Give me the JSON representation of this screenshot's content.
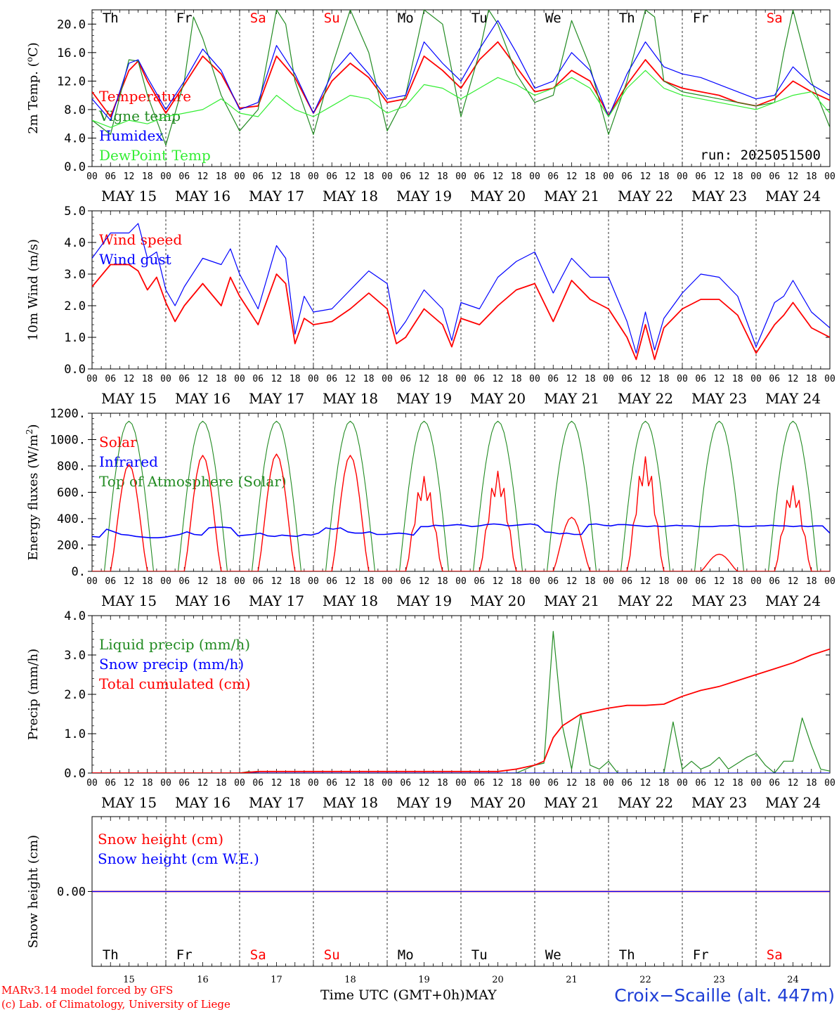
{
  "run_label": "run: 2025051500",
  "footer": {
    "credit_line1": "MARv3.14 model forced by GFS",
    "credit_line2": "(c) Lab. of Climatology, University of Liege",
    "xlabel": "Time UTC (GMT+0h)",
    "month": "MAY",
    "station": "Croix−Scaille (alt. 447m)"
  },
  "days": [
    {
      "abbr": "Th",
      "date": "MAY 15",
      "num": "15",
      "weekend": false
    },
    {
      "abbr": "Fr",
      "date": "MAY 16",
      "num": "16",
      "weekend": false
    },
    {
      "abbr": "Sa",
      "date": "MAY 17",
      "num": "17",
      "weekend": true
    },
    {
      "abbr": "Su",
      "date": "MAY 18",
      "num": "18",
      "weekend": true
    },
    {
      "abbr": "Mo",
      "date": "MAY 19",
      "num": "19",
      "weekend": false
    },
    {
      "abbr": "Tu",
      "date": "MAY 20",
      "num": "20",
      "weekend": false
    },
    {
      "abbr": "We",
      "date": "MAY 21",
      "num": "21",
      "weekend": false
    },
    {
      "abbr": "Th",
      "date": "MAY 22",
      "num": "22",
      "weekend": false
    },
    {
      "abbr": "Fr",
      "date": "MAY 23",
      "num": "23",
      "weekend": false
    },
    {
      "abbr": "Sa",
      "date": "MAY 24",
      "num": "24",
      "weekend": true
    }
  ],
  "hour_ticks": [
    "00",
    "06",
    "12",
    "18"
  ],
  "last_tick": "00",
  "colors": {
    "red": "#ff0000",
    "darkgreen": "#228b22",
    "blue": "#0000ff",
    "lightgreen": "#33ee33",
    "weekend": "#ff0000",
    "station": "#1f3fd6"
  },
  "chart_data": [
    {
      "id": "temp",
      "type": "line",
      "ylabel": "2m Temp. (oC)",
      "ylim": [
        0,
        22
      ],
      "yticks": [
        "0.0",
        "4.0",
        "8.0",
        "12.0",
        "16.0",
        "20.0"
      ],
      "ytick_values": [
        0,
        4,
        8,
        12,
        16,
        20
      ],
      "legend": [
        "Temperature",
        "Vigne temp",
        "Humidex",
        "DewPoint Temp"
      ],
      "series": [
        {
          "name": "Temperature",
          "color": "red",
          "x": [
            0,
            6,
            12,
            15,
            18,
            24,
            30,
            36,
            42,
            48,
            54,
            60,
            66,
            72,
            78,
            84,
            90,
            96,
            102,
            108,
            114,
            120,
            126,
            132,
            138,
            144,
            150,
            156,
            162,
            168,
            174,
            180,
            186,
            192,
            198,
            204,
            210,
            216,
            222,
            228,
            234,
            240
          ],
          "y": [
            10.5,
            7.0,
            13.5,
            14.8,
            12.0,
            7.5,
            11.5,
            15.5,
            13.0,
            8.2,
            8.5,
            15.5,
            12.5,
            7.5,
            12.0,
            14.5,
            12.5,
            9.0,
            9.5,
            15.5,
            13.5,
            11.0,
            15.0,
            17.5,
            14.0,
            10.5,
            11.0,
            13.5,
            12.0,
            7.2,
            11.5,
            15.0,
            12.0,
            11.0,
            10.5,
            10.0,
            9.0,
            8.5,
            9.5,
            12.0,
            10.5,
            9.3
          ]
        },
        {
          "name": "Vigne temp",
          "color": "darkgreen",
          "x": [
            0,
            6,
            12,
            15,
            18,
            24,
            30,
            33,
            36,
            42,
            48,
            54,
            60,
            63,
            66,
            72,
            78,
            84,
            90,
            96,
            102,
            108,
            114,
            120,
            126,
            129,
            132,
            138,
            144,
            150,
            156,
            162,
            168,
            174,
            180,
            183,
            186,
            192,
            198,
            204,
            210,
            216,
            222,
            225,
            228,
            234,
            240
          ],
          "y": [
            6.5,
            4.5,
            15.0,
            14.8,
            10.0,
            3.0,
            12.0,
            21.0,
            18.0,
            10.0,
            5.0,
            8.0,
            22.0,
            20.0,
            12.0,
            4.5,
            14.0,
            22.0,
            16.0,
            5.0,
            10.0,
            22.0,
            20.0,
            7.0,
            16.0,
            22.0,
            20.0,
            13.0,
            9.0,
            10.0,
            20.5,
            14.0,
            4.5,
            12.0,
            22.0,
            21.0,
            12.0,
            10.5,
            10.0,
            9.5,
            9.0,
            8.5,
            9.0,
            16.0,
            22.0,
            12.0,
            5.5
          ]
        },
        {
          "name": "Humidex",
          "color": "blue",
          "x": [
            0,
            6,
            12,
            15,
            18,
            24,
            30,
            36,
            42,
            48,
            54,
            60,
            66,
            72,
            78,
            84,
            90,
            96,
            102,
            108,
            114,
            120,
            126,
            132,
            138,
            144,
            150,
            156,
            162,
            168,
            174,
            180,
            186,
            192,
            198,
            204,
            210,
            216,
            222,
            228,
            234,
            240
          ],
          "y": [
            9.5,
            6.5,
            14.5,
            15.0,
            12.5,
            8.0,
            12.0,
            16.5,
            13.5,
            8.0,
            9.0,
            17.0,
            13.0,
            7.5,
            13.0,
            16.0,
            13.0,
            9.5,
            10.0,
            17.5,
            14.5,
            12.0,
            16.5,
            20.5,
            16.0,
            11.0,
            12.0,
            16.0,
            13.5,
            7.0,
            13.0,
            17.5,
            14.0,
            13.0,
            12.5,
            11.5,
            10.5,
            9.5,
            10.0,
            14.0,
            11.5,
            10.0
          ]
        },
        {
          "name": "DewPoint Temp",
          "color": "lightgreen",
          "x": [
            0,
            6,
            12,
            18,
            24,
            30,
            36,
            42,
            48,
            54,
            60,
            66,
            72,
            78,
            84,
            90,
            96,
            102,
            108,
            114,
            120,
            126,
            132,
            138,
            144,
            150,
            156,
            162,
            168,
            174,
            180,
            186,
            192,
            198,
            204,
            210,
            216,
            222,
            228,
            234,
            240
          ],
          "y": [
            6.5,
            5.5,
            6.5,
            6.0,
            7.0,
            7.5,
            8.0,
            9.5,
            7.5,
            7.0,
            10.0,
            8.0,
            7.0,
            8.5,
            10.0,
            9.5,
            7.5,
            8.5,
            11.5,
            11.0,
            9.5,
            11.0,
            12.5,
            11.5,
            10.0,
            11.0,
            12.5,
            11.0,
            7.0,
            11.0,
            13.5,
            11.0,
            10.0,
            9.5,
            9.0,
            8.5,
            8.0,
            9.0,
            10.0,
            10.5,
            7.5
          ]
        }
      ]
    },
    {
      "id": "wind",
      "type": "line",
      "ylabel": "10m Wind (m/s)",
      "ylim": [
        0,
        5
      ],
      "yticks": [
        "0.0",
        "1.0",
        "2.0",
        "3.0",
        "4.0",
        "5.0"
      ],
      "ytick_values": [
        0,
        1,
        2,
        3,
        4,
        5
      ],
      "legend": [
        "Wind speed",
        "Wind gust"
      ],
      "series": [
        {
          "name": "Wind speed",
          "color": "red",
          "x": [
            0,
            6,
            12,
            15,
            18,
            21,
            24,
            27,
            30,
            36,
            42,
            45,
            48,
            54,
            60,
            63,
            66,
            69,
            72,
            78,
            84,
            90,
            96,
            99,
            102,
            108,
            114,
            117,
            120,
            126,
            132,
            138,
            144,
            150,
            156,
            162,
            168,
            174,
            177,
            180,
            183,
            186,
            192,
            198,
            204,
            210,
            216,
            222,
            225,
            228,
            234,
            240
          ],
          "y": [
            2.6,
            3.3,
            3.3,
            3.1,
            2.5,
            2.9,
            2.1,
            1.5,
            2.0,
            2.7,
            2.0,
            2.9,
            2.3,
            1.4,
            3.0,
            2.7,
            0.8,
            1.6,
            1.4,
            1.5,
            1.9,
            2.4,
            1.9,
            0.8,
            1.0,
            1.9,
            1.4,
            0.7,
            1.6,
            1.4,
            2.0,
            2.5,
            2.7,
            1.5,
            2.8,
            2.2,
            1.9,
            1.0,
            0.3,
            1.4,
            0.3,
            1.3,
            1.9,
            2.2,
            2.2,
            1.7,
            0.5,
            1.4,
            1.7,
            2.1,
            1.3,
            1.0
          ]
        },
        {
          "name": "Wind gust",
          "color": "blue",
          "x": [
            0,
            6,
            12,
            15,
            18,
            21,
            24,
            27,
            30,
            36,
            42,
            45,
            48,
            54,
            60,
            63,
            66,
            69,
            72,
            78,
            84,
            90,
            96,
            99,
            102,
            108,
            114,
            117,
            120,
            126,
            132,
            138,
            144,
            150,
            156,
            162,
            168,
            174,
            177,
            180,
            183,
            186,
            192,
            198,
            204,
            210,
            216,
            222,
            225,
            228,
            234,
            240
          ],
          "y": [
            3.5,
            4.3,
            4.3,
            4.6,
            3.5,
            3.7,
            2.5,
            2.0,
            2.6,
            3.5,
            3.3,
            3.8,
            3.0,
            1.9,
            3.9,
            3.5,
            1.1,
            2.3,
            1.8,
            1.9,
            2.5,
            3.1,
            2.7,
            1.1,
            1.5,
            2.5,
            1.9,
            0.9,
            2.1,
            1.9,
            2.9,
            3.4,
            3.7,
            2.4,
            3.5,
            2.9,
            2.9,
            1.5,
            0.5,
            1.8,
            0.6,
            1.6,
            2.4,
            3.0,
            2.9,
            2.3,
            0.7,
            2.1,
            2.3,
            2.8,
            1.8,
            1.3
          ]
        }
      ]
    },
    {
      "id": "energy",
      "type": "line",
      "ylabel": "Energy fluxes (W/m2)",
      "ylim": [
        0,
        1200
      ],
      "yticks": [
        "0.",
        "200.",
        "400.",
        "600.",
        "800.",
        "1000.",
        "1200."
      ],
      "ytick_values": [
        0,
        200,
        400,
        600,
        800,
        1000,
        1200
      ],
      "legend": [
        "Solar",
        "Infrared",
        "Top of Atmosphere (Solar)"
      ],
      "toa_peak": 1140,
      "solar_daily_peak": [
        810,
        880,
        890,
        880,
        720,
        760,
        410,
        870,
        130,
        650
      ],
      "infrared": [
        265,
        260,
        320,
        300,
        280,
        275,
        265,
        260,
        255,
        255,
        260,
        270,
        280,
        300,
        280,
        275,
        330,
        335,
        335,
        330,
        270,
        275,
        280,
        290,
        270,
        265,
        275,
        270,
        265,
        280,
        275,
        290,
        330,
        320,
        330,
        300,
        290,
        290,
        300,
        280,
        280,
        285,
        290,
        285,
        275,
        340,
        340,
        350,
        345,
        350,
        355,
        350,
        340,
        345,
        355,
        360,
        355,
        345,
        350,
        355,
        360,
        350,
        300,
        295,
        285,
        290,
        280,
        280,
        355,
        360,
        350,
        345,
        355,
        355,
        350,
        345,
        340,
        345,
        340,
        345,
        350,
        345,
        345,
        340,
        340,
        340,
        345,
        345,
        350,
        340,
        340,
        345,
        345,
        350,
        345,
        345,
        340,
        345,
        340,
        345,
        345,
        290
      ]
    },
    {
      "id": "precip",
      "type": "line",
      "ylabel": "Precip (mm/h)",
      "ylim": [
        0,
        4
      ],
      "yticks": [
        "0.0",
        "1.0",
        "2.0",
        "3.0",
        "4.0"
      ],
      "ytick_values": [
        0,
        1,
        2,
        3,
        4
      ],
      "legend": [
        "Liquid precip (mm/h)",
        "Snow precip (mm/h)",
        "Total cumulated (cm)"
      ],
      "series": [
        {
          "name": "Liquid precip (mm/h)",
          "color": "darkgreen",
          "x": [
            0,
            48,
            51,
            54,
            138,
            141,
            144,
            147,
            150,
            153,
            156,
            159,
            162,
            165,
            168,
            171,
            174,
            177,
            180,
            183,
            186,
            189,
            192,
            195,
            198,
            201,
            204,
            207,
            210,
            213,
            216,
            219,
            222,
            225,
            228,
            231,
            234,
            237,
            240
          ],
          "y": [
            0.0,
            0.0,
            0.04,
            0.0,
            0.0,
            0.1,
            0.2,
            0.25,
            3.6,
            1.2,
            0.1,
            1.5,
            0.2,
            0.1,
            0.3,
            0.0,
            0.0,
            0.0,
            0.0,
            0.0,
            0.0,
            1.3,
            0.1,
            0.3,
            0.1,
            0.2,
            0.4,
            0.1,
            0.25,
            0.4,
            0.5,
            0.2,
            0.0,
            0.3,
            0.3,
            1.4,
            0.7,
            0.1,
            0.05
          ]
        },
        {
          "name": "Snow precip (mm/h)",
          "color": "blue",
          "x": [
            0,
            240
          ],
          "y": [
            0.0,
            0.0
          ]
        },
        {
          "name": "Total cumulated (cm)",
          "color": "red",
          "x": [
            0,
            48,
            54,
            132,
            138,
            144,
            147,
            150,
            153,
            156,
            159,
            162,
            168,
            174,
            180,
            186,
            192,
            198,
            204,
            210,
            216,
            222,
            228,
            234,
            240
          ],
          "y": [
            0.0,
            0.0,
            0.04,
            0.04,
            0.1,
            0.2,
            0.3,
            0.9,
            1.2,
            1.35,
            1.5,
            1.55,
            1.65,
            1.72,
            1.72,
            1.75,
            1.95,
            2.1,
            2.2,
            2.35,
            2.5,
            2.65,
            2.8,
            3.0,
            3.15
          ]
        }
      ]
    },
    {
      "id": "snow",
      "type": "line",
      "ylabel": "Snow height (cm)",
      "yticks": [
        "0.00"
      ],
      "ytick_values": [
        0
      ],
      "ylim": [
        -1,
        1
      ],
      "legend": [
        "Snow height (cm)",
        "Snow height (cm W.E.)"
      ],
      "series": [
        {
          "name": "Snow height (cm)",
          "color": "red",
          "x": [
            0,
            240
          ],
          "y": [
            0,
            0
          ]
        },
        {
          "name": "Snow height (cm W.E.)",
          "color": "blue",
          "x": [
            0,
            240
          ],
          "y": [
            0,
            0
          ]
        }
      ]
    }
  ]
}
